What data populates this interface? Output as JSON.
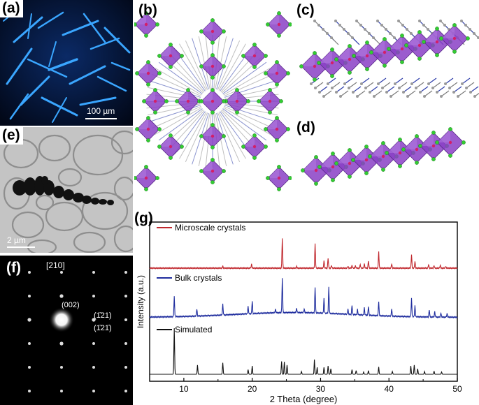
{
  "panels": {
    "a": {
      "label": "(a)",
      "scale_text": "100 µm"
    },
    "b": {
      "label": "(b)"
    },
    "c": {
      "label": "(c)"
    },
    "d": {
      "label": "(d)"
    },
    "e": {
      "label": "(e)",
      "scale_text": "2 µm"
    },
    "f": {
      "label": "(f)",
      "zone_axis": "[210]",
      "spots": [
        "(002)",
        "(1̄21)",
        "(1̄21̄)"
      ]
    },
    "g": {
      "label": "(g)"
    }
  },
  "colors": {
    "microscale": "#c0272d",
    "bulk": "#1f2d9e",
    "simulated": "#111111",
    "octahedra": "#8a3fc6",
    "halide": "#33cc33"
  },
  "chart_data": {
    "type": "line",
    "xlabel": "2 Theta (degree)",
    "ylabel": "Intensity (a.u.)",
    "xlim": [
      5,
      50
    ],
    "x_ticks": [
      "10",
      "20",
      "30",
      "40",
      "50"
    ],
    "y_ticks_labeled": false,
    "legend_position": "inline-top-left",
    "series": [
      {
        "name": "Microscale crystals",
        "baseline": 0.0,
        "peaks": [
          [
            15.7,
            0.06
          ],
          [
            19.9,
            0.12
          ],
          [
            24.4,
            0.9
          ],
          [
            26.5,
            0.05
          ],
          [
            29.2,
            0.72
          ],
          [
            30.5,
            0.22
          ],
          [
            31.1,
            0.3
          ],
          [
            31.6,
            0.08
          ],
          [
            34.0,
            0.06
          ],
          [
            34.6,
            0.08
          ],
          [
            35.1,
            0.07
          ],
          [
            35.8,
            0.11
          ],
          [
            36.4,
            0.13
          ],
          [
            37.0,
            0.22
          ],
          [
            38.5,
            0.5
          ],
          [
            40.4,
            0.13
          ],
          [
            43.3,
            0.4
          ],
          [
            43.8,
            0.2
          ],
          [
            45.8,
            0.11
          ],
          [
            46.6,
            0.08
          ],
          [
            47.5,
            0.09
          ],
          [
            48.3,
            0.06
          ]
        ]
      },
      {
        "name": "Bulk crystals",
        "baseline": 0.2,
        "peaks": [
          [
            8.6,
            0.55
          ],
          [
            11.9,
            0.2
          ],
          [
            15.7,
            0.3
          ],
          [
            19.4,
            0.2
          ],
          [
            20.0,
            0.35
          ],
          [
            23.4,
            0.1
          ],
          [
            24.4,
            0.95
          ],
          [
            26.5,
            0.12
          ],
          [
            27.6,
            0.1
          ],
          [
            29.2,
            0.7
          ],
          [
            30.5,
            0.4
          ],
          [
            31.2,
            0.72
          ],
          [
            34.0,
            0.15
          ],
          [
            34.6,
            0.25
          ],
          [
            35.4,
            0.15
          ],
          [
            36.4,
            0.2
          ],
          [
            37.0,
            0.25
          ],
          [
            38.5,
            0.4
          ],
          [
            40.4,
            0.2
          ],
          [
            43.3,
            0.5
          ],
          [
            43.8,
            0.3
          ],
          [
            45.9,
            0.2
          ],
          [
            46.7,
            0.15
          ],
          [
            47.6,
            0.12
          ],
          [
            48.5,
            0.1
          ]
        ]
      },
      {
        "name": "Simulated",
        "baseline": 0.0,
        "peaks": [
          [
            8.6,
            1.0
          ],
          [
            12.0,
            0.2
          ],
          [
            15.7,
            0.25
          ],
          [
            19.4,
            0.1
          ],
          [
            20.0,
            0.18
          ],
          [
            24.3,
            0.28
          ],
          [
            24.7,
            0.27
          ],
          [
            25.1,
            0.2
          ],
          [
            27.2,
            0.06
          ],
          [
            29.1,
            0.32
          ],
          [
            29.5,
            0.15
          ],
          [
            30.5,
            0.15
          ],
          [
            31.1,
            0.18
          ],
          [
            31.5,
            0.12
          ],
          [
            34.6,
            0.1
          ],
          [
            35.2,
            0.08
          ],
          [
            36.3,
            0.05
          ],
          [
            37.0,
            0.08
          ],
          [
            38.5,
            0.16
          ],
          [
            40.5,
            0.06
          ],
          [
            43.2,
            0.18
          ],
          [
            43.7,
            0.2
          ],
          [
            44.2,
            0.12
          ],
          [
            45.2,
            0.06
          ],
          [
            46.6,
            0.07
          ],
          [
            47.7,
            0.05
          ]
        ]
      }
    ]
  }
}
